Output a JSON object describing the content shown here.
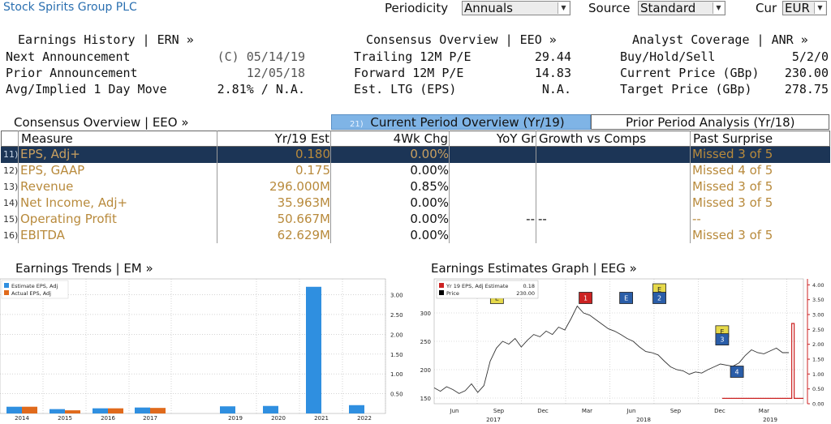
{
  "header": {
    "title": "Stock Spirits Group PLC",
    "periodicity_label": "Periodicity",
    "periodicity_value": "Annuals",
    "source_label": "Source",
    "source_value": "Standard",
    "cur_label": "Cur",
    "cur_value": "EUR"
  },
  "earnings_history": {
    "title": "Earnings History | ERN »",
    "rows": [
      {
        "label": "Next Announcement",
        "value": "(C)  05/14/19"
      },
      {
        "label": "Prior Announcement",
        "value": "12/05/18"
      },
      {
        "label": "Avg/Implied 1 Day Move",
        "value": "2.81% / N.A."
      }
    ]
  },
  "consensus_top": {
    "title": "Consensus Overview | EEO »",
    "rows": [
      {
        "label": "Trailing 12M P/E",
        "value": "29.44"
      },
      {
        "label": "Forward 12M P/E",
        "value": "14.83"
      },
      {
        "label": "Est. LTG (EPS)",
        "value": "N.A."
      }
    ]
  },
  "analyst": {
    "title": "Analyst Coverage | ANR »",
    "rows": [
      {
        "label": "Buy/Hold/Sell",
        "value": "5/2/0"
      },
      {
        "label": "Current Price (GBp)",
        "value": "230.00"
      },
      {
        "label": "Target Price (GBp)",
        "value": "278.75"
      }
    ]
  },
  "consensus_table": {
    "title": "Consensus Overview | EEO »",
    "tab_current_num": "21)",
    "tab_current": "Current Period Overview (Yr/19)",
    "tab_prior": "Prior Period Analysis (Yr/18)",
    "headers": [
      "Measure",
      "Yr/19 Est",
      "4Wk Chg",
      "YoY Gr",
      "Growth vs Comps",
      "Past Surprise"
    ],
    "rows": [
      {
        "num": "11)",
        "measure": "EPS, Adj+",
        "est": "0.180",
        "chg": "0.00%",
        "yoy": "",
        "comps": "",
        "surprise": "Missed 3 of 5"
      },
      {
        "num": "12)",
        "measure": "EPS, GAAP",
        "est": "0.175",
        "chg": "0.00%",
        "yoy": "",
        "comps": "",
        "surprise": "Missed 4 of 5"
      },
      {
        "num": "13)",
        "measure": "Revenue",
        "est": "296.000M",
        "chg": "0.85%",
        "yoy": "",
        "comps": "",
        "surprise": "Missed 3 of 5"
      },
      {
        "num": "14)",
        "measure": "Net Income, Adj+",
        "est": "35.963M",
        "chg": "0.00%",
        "yoy": "",
        "comps": "",
        "surprise": "Missed 3 of 5"
      },
      {
        "num": "15)",
        "measure": "Operating Profit",
        "est": "50.667M",
        "chg": "0.00%",
        "yoy": "--",
        "comps": "--",
        "surprise": "--"
      },
      {
        "num": "16)",
        "measure": "EBITDA",
        "est": "62.629M",
        "chg": "0.00%",
        "yoy": "",
        "comps": "",
        "surprise": "Missed 3 of 5"
      }
    ]
  },
  "chart_data": [
    {
      "type": "bar",
      "title": "Earnings Trends | EM »",
      "categories": [
        "2014",
        "2015",
        "2016",
        "2017",
        "2019",
        "2020",
        "2021",
        "2022"
      ],
      "series": [
        {
          "name": "Estimate EPS, Adj",
          "values": [
            0.17,
            0.11,
            0.13,
            0.15,
            0.18,
            0.19,
            3.2,
            0.21
          ]
        },
        {
          "name": "Actual EPS, Adj",
          "values": [
            0.17,
            0.08,
            0.13,
            0.14,
            null,
            null,
            null,
            null
          ]
        }
      ],
      "yticks": [
        "3.00",
        "2.50",
        "2.00",
        "1.50",
        "1.00",
        "0.50"
      ],
      "ylim": [
        0,
        3.4
      ],
      "colors": {
        "estimate": "#2f8fe0",
        "actual": "#e06a1c"
      },
      "legend_position": "top-left",
      "grid": true
    },
    {
      "type": "line",
      "title": "Earnings Estimates Graph | EEG »",
      "legend": [
        {
          "name": "Yr 19 EPS, Adj Estimate",
          "value": "0.18"
        },
        {
          "name": "Price",
          "value": "230.00"
        }
      ],
      "left_ticks": [
        "300",
        "250",
        "200",
        "150"
      ],
      "right_ticks": [
        "4.00",
        "3.50",
        "3.00",
        "2.50",
        "2.00",
        "1.50",
        "1.00",
        "0.50",
        "0.00"
      ],
      "xticks_top": [
        "Jun",
        "Sep",
        "Dec",
        "Mar",
        "Jun",
        "Sep",
        "Dec",
        "Mar"
      ],
      "xticks_bottom": [
        "2017",
        "2018",
        "2019"
      ],
      "price": [
        168,
        162,
        170,
        165,
        158,
        163,
        175,
        160,
        172,
        215,
        238,
        250,
        245,
        255,
        240,
        252,
        262,
        258,
        268,
        262,
        275,
        270,
        290,
        312,
        300,
        296,
        288,
        280,
        272,
        268,
        262,
        255,
        250,
        240,
        232,
        230,
        226,
        215,
        205,
        200,
        198,
        192,
        196,
        194,
        200,
        205,
        210,
        208,
        206,
        212,
        225,
        235,
        230,
        228,
        233,
        238,
        230,
        230
      ],
      "ylim": [
        140,
        360
      ],
      "eps_ylim": [
        0,
        4.2
      ],
      "eps_spike": [
        {
          "x": 0.975,
          "y": 2.7
        }
      ],
      "markers": [
        {
          "label": "E",
          "color": "#e6d94a",
          "x": 0.17,
          "y": 325
        },
        {
          "label": "1",
          "color": "#cc2222",
          "x": 0.41,
          "y": 325
        },
        {
          "label": "E",
          "color": "#2a5da8",
          "x": 0.52,
          "y": 325
        },
        {
          "label": "E",
          "color": "#e6d94a",
          "x": 0.61,
          "y": 340
        },
        {
          "label": "2",
          "color": "#2a5da8",
          "x": 0.61,
          "y": 325
        },
        {
          "label": "E",
          "color": "#e6d94a",
          "x": 0.78,
          "y": 266
        },
        {
          "label": "3",
          "color": "#2a5da8",
          "x": 0.78,
          "y": 252
        },
        {
          "label": "4",
          "color": "#2a5da8",
          "x": 0.82,
          "y": 195
        }
      ],
      "colors": {
        "price": "#333333",
        "eps": "#cc2222"
      },
      "legend_position": "top-left",
      "grid": true
    }
  ]
}
